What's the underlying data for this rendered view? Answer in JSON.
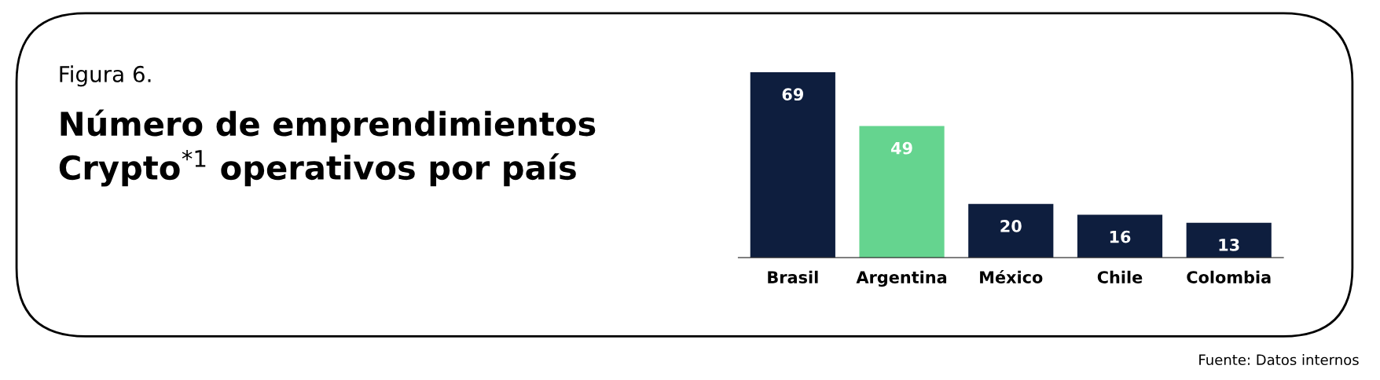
{
  "chart_data": {
    "type": "bar",
    "subtitle": "Figura 6.",
    "title": "Número de emprendimientos\nCrypto$^{*1}$ operativos por país",
    "categories": [
      "Brasil",
      "Argentina",
      "México",
      "Chile",
      "Colombia"
    ],
    "values": [
      69,
      49,
      20,
      16,
      13
    ],
    "colors": [
      "#0e1e3e",
      "#65d48f",
      "#0e1e3e",
      "#0e1e3e",
      "#0e1e3e"
    ],
    "data_labels": true,
    "annotations": [
      "Fuente: Datos internos"
    ]
  }
}
